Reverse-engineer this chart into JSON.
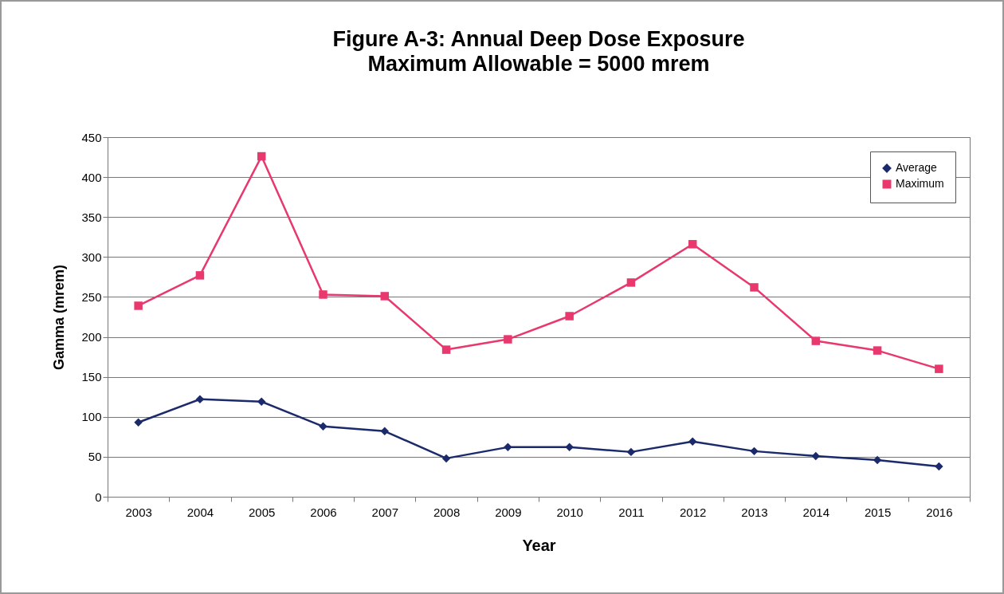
{
  "chart_data": {
    "type": "line",
    "title": "Figure A-3:  Annual Deep Dose Exposure",
    "subtitle": "Maximum Allowable = 5000 mrem",
    "xlabel": "Year",
    "ylabel": "Gamma (mrem)",
    "categories": [
      "2003",
      "2004",
      "2005",
      "2006",
      "2007",
      "2008",
      "2009",
      "2010",
      "2011",
      "2012",
      "2013",
      "2014",
      "2015",
      "2016"
    ],
    "ylim": [
      0,
      450
    ],
    "yticks": [
      0,
      50,
      100,
      150,
      200,
      250,
      300,
      350,
      400,
      450
    ],
    "grid": "y",
    "legend": "top right",
    "series": [
      {
        "name": "Average",
        "marker": "diamond",
        "color": "#1b2a6b",
        "values": [
          93,
          122,
          119,
          88,
          82,
          48,
          62,
          62,
          56,
          69,
          57,
          51,
          46,
          38
        ]
      },
      {
        "name": "Maximum",
        "marker": "square",
        "color": "#e8386d",
        "values": [
          239,
          277,
          426,
          253,
          251,
          184,
          197,
          226,
          268,
          316,
          262,
          195,
          183,
          160
        ]
      }
    ]
  }
}
